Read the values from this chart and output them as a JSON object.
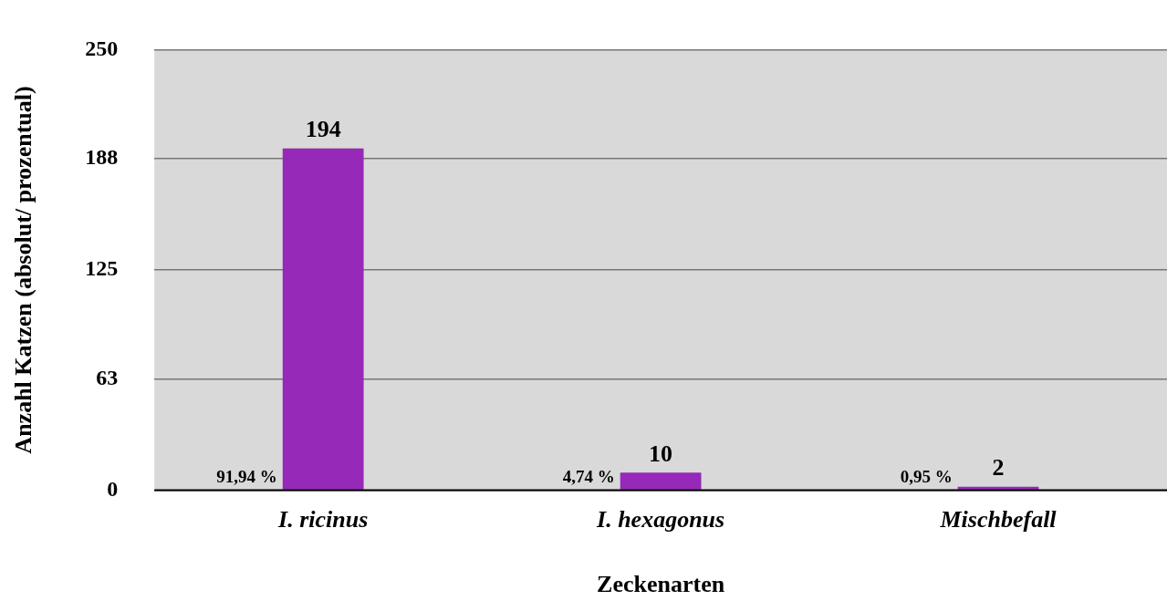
{
  "chart_data": {
    "type": "bar",
    "xlabel": "Zeckenarten",
    "ylabel": "Anzahl Katzen (absolut/ prozentual)",
    "categories": [
      "I. ricinus",
      "I. hexagonus",
      "Mischbefall"
    ],
    "values": [
      194,
      10,
      2
    ],
    "color": "#9629b8",
    "ylim": [
      0,
      250
    ],
    "yticks": [
      0,
      63,
      125,
      188,
      250
    ],
    "grid": "y",
    "data_labels": true,
    "legend": false,
    "annotations": [
      {
        "text": "91,94 %",
        "x": "I. ricinus",
        "y": 0
      },
      {
        "text": "4,74 %",
        "x": "I. hexagonus",
        "y": 0
      },
      {
        "text": "0,95 %",
        "x": "Mischbefall",
        "y": 0
      }
    ]
  }
}
